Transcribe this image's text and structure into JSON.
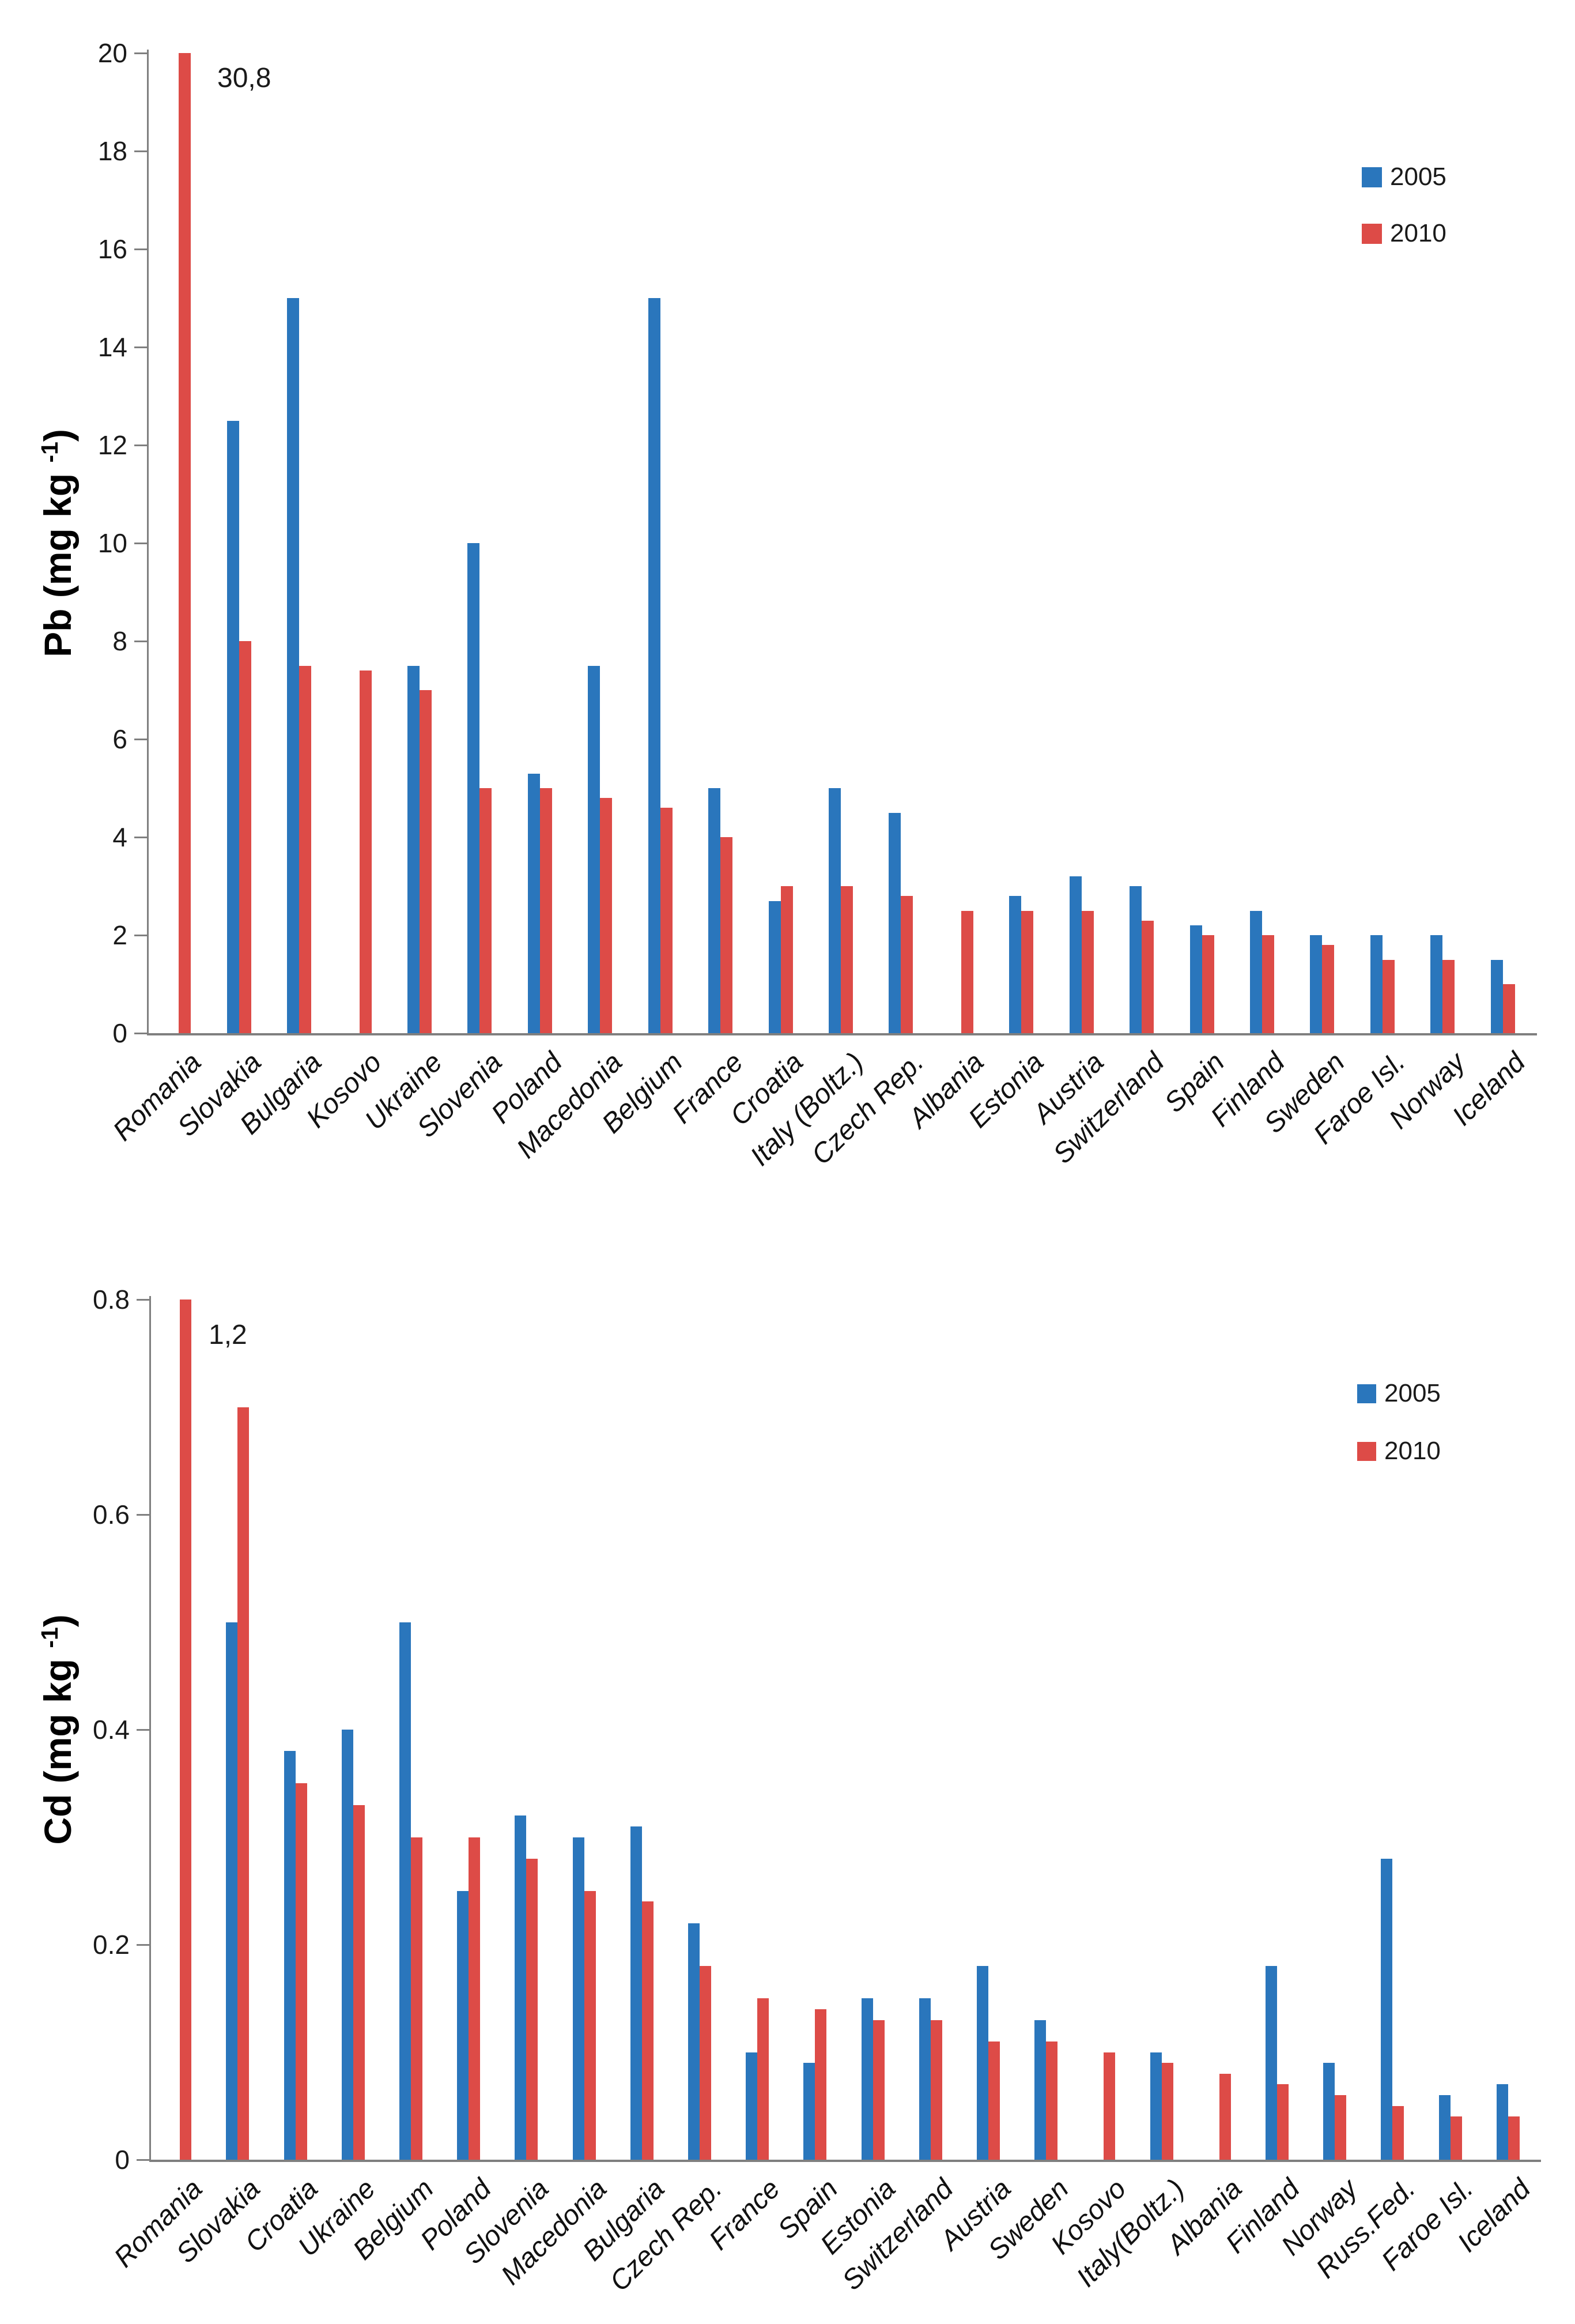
{
  "colors": {
    "series_2005": "#2A76BC",
    "series_2010": "#DD4B47",
    "axis_line": "#7f7f7f",
    "text": "#1a1a1a"
  },
  "legend": {
    "items": [
      {
        "label": "2005",
        "color": "#2A76BC"
      },
      {
        "label": "2010",
        "color": "#DD4B47"
      }
    ],
    "position": "top-right"
  },
  "chart_data": [
    {
      "id": "pb",
      "type": "bar",
      "title": "",
      "ylabel": {
        "prefix": "Pb (mg kg ",
        "sup": "-1",
        "suffix": ")"
      },
      "ylim": [
        0,
        20
      ],
      "yticks": [
        "20",
        "18",
        "16",
        "14",
        "12",
        "10",
        "8",
        "6",
        "4",
        "2",
        "0"
      ],
      "grid": "off",
      "legend_position": "top-right",
      "annotation": "30,8",
      "annotation_meaning": "off-scale value of Romania 2010 bar",
      "categories": [
        "Romania",
        "Slovakia",
        "Bulgaria",
        "Kosovo",
        "Ukraine",
        "Slovenia",
        "Poland",
        "Macedonia",
        "Belgium",
        "France",
        "Croatia",
        "Italy (Boltz.)",
        "Czech Rep.",
        "Albania",
        "Estonia",
        "Austria",
        "Switzerland",
        "Spain",
        "Finland",
        "Sweden",
        "Faroe Isl.",
        "Norway",
        "Iceland"
      ],
      "series": [
        {
          "name": "2005",
          "values": [
            null,
            12.5,
            15,
            null,
            7.5,
            10,
            5.3,
            7.5,
            15,
            5,
            2.7,
            5,
            4.5,
            null,
            2.8,
            3.2,
            3,
            2.2,
            2.5,
            2,
            2,
            2,
            1.5
          ]
        },
        {
          "name": "2010",
          "values": [
            30.8,
            8,
            7.5,
            7.4,
            7,
            5,
            5,
            4.8,
            4.6,
            4,
            3,
            3,
            2.8,
            2.5,
            2.5,
            2.5,
            2.3,
            2,
            2,
            1.8,
            1.5,
            1.5,
            1
          ]
        }
      ]
    },
    {
      "id": "cd",
      "type": "bar",
      "title": "",
      "ylabel": {
        "prefix": "Cd  (mg kg ",
        "sup": "-1",
        "suffix": ")"
      },
      "ylim": [
        0,
        0.8
      ],
      "yticks": [
        "0.8",
        "0.6",
        "0.4",
        "0.2",
        "0"
      ],
      "grid": "off",
      "legend_position": "top-right",
      "annotation": "1,2",
      "annotation_meaning": "off-scale value of Romania 2010 bar",
      "categories": [
        "Romania",
        "Slovakia",
        "Croatia",
        "Ukraine",
        "Belgium",
        "Poland",
        "Slovenia",
        "Macedonia",
        "Bulgaria",
        "Czech Rep.",
        "France",
        "Spain",
        "Estonia",
        "Switzerland",
        "Austria",
        "Sweden",
        "Kosovo",
        "Italy(Boltz.)",
        "Albania",
        "Finland",
        "Norway",
        "Russ.Fed.",
        "Faroe Isl.",
        "Iceland"
      ],
      "series": [
        {
          "name": "2005",
          "values": [
            null,
            0.5,
            0.38,
            0.4,
            0.5,
            0.25,
            0.32,
            0.3,
            0.31,
            0.22,
            0.1,
            0.09,
            0.15,
            0.15,
            0.18,
            0.13,
            null,
            0.1,
            null,
            0.18,
            0.09,
            0.28,
            0.06,
            0.07
          ]
        },
        {
          "name": "2010",
          "values": [
            1.2,
            0.7,
            0.35,
            0.33,
            0.3,
            0.3,
            0.28,
            0.25,
            0.24,
            0.18,
            0.15,
            0.14,
            0.13,
            0.13,
            0.11,
            0.11,
            0.1,
            0.09,
            0.08,
            0.07,
            0.06,
            0.05,
            0.04,
            0.04
          ]
        }
      ]
    }
  ]
}
